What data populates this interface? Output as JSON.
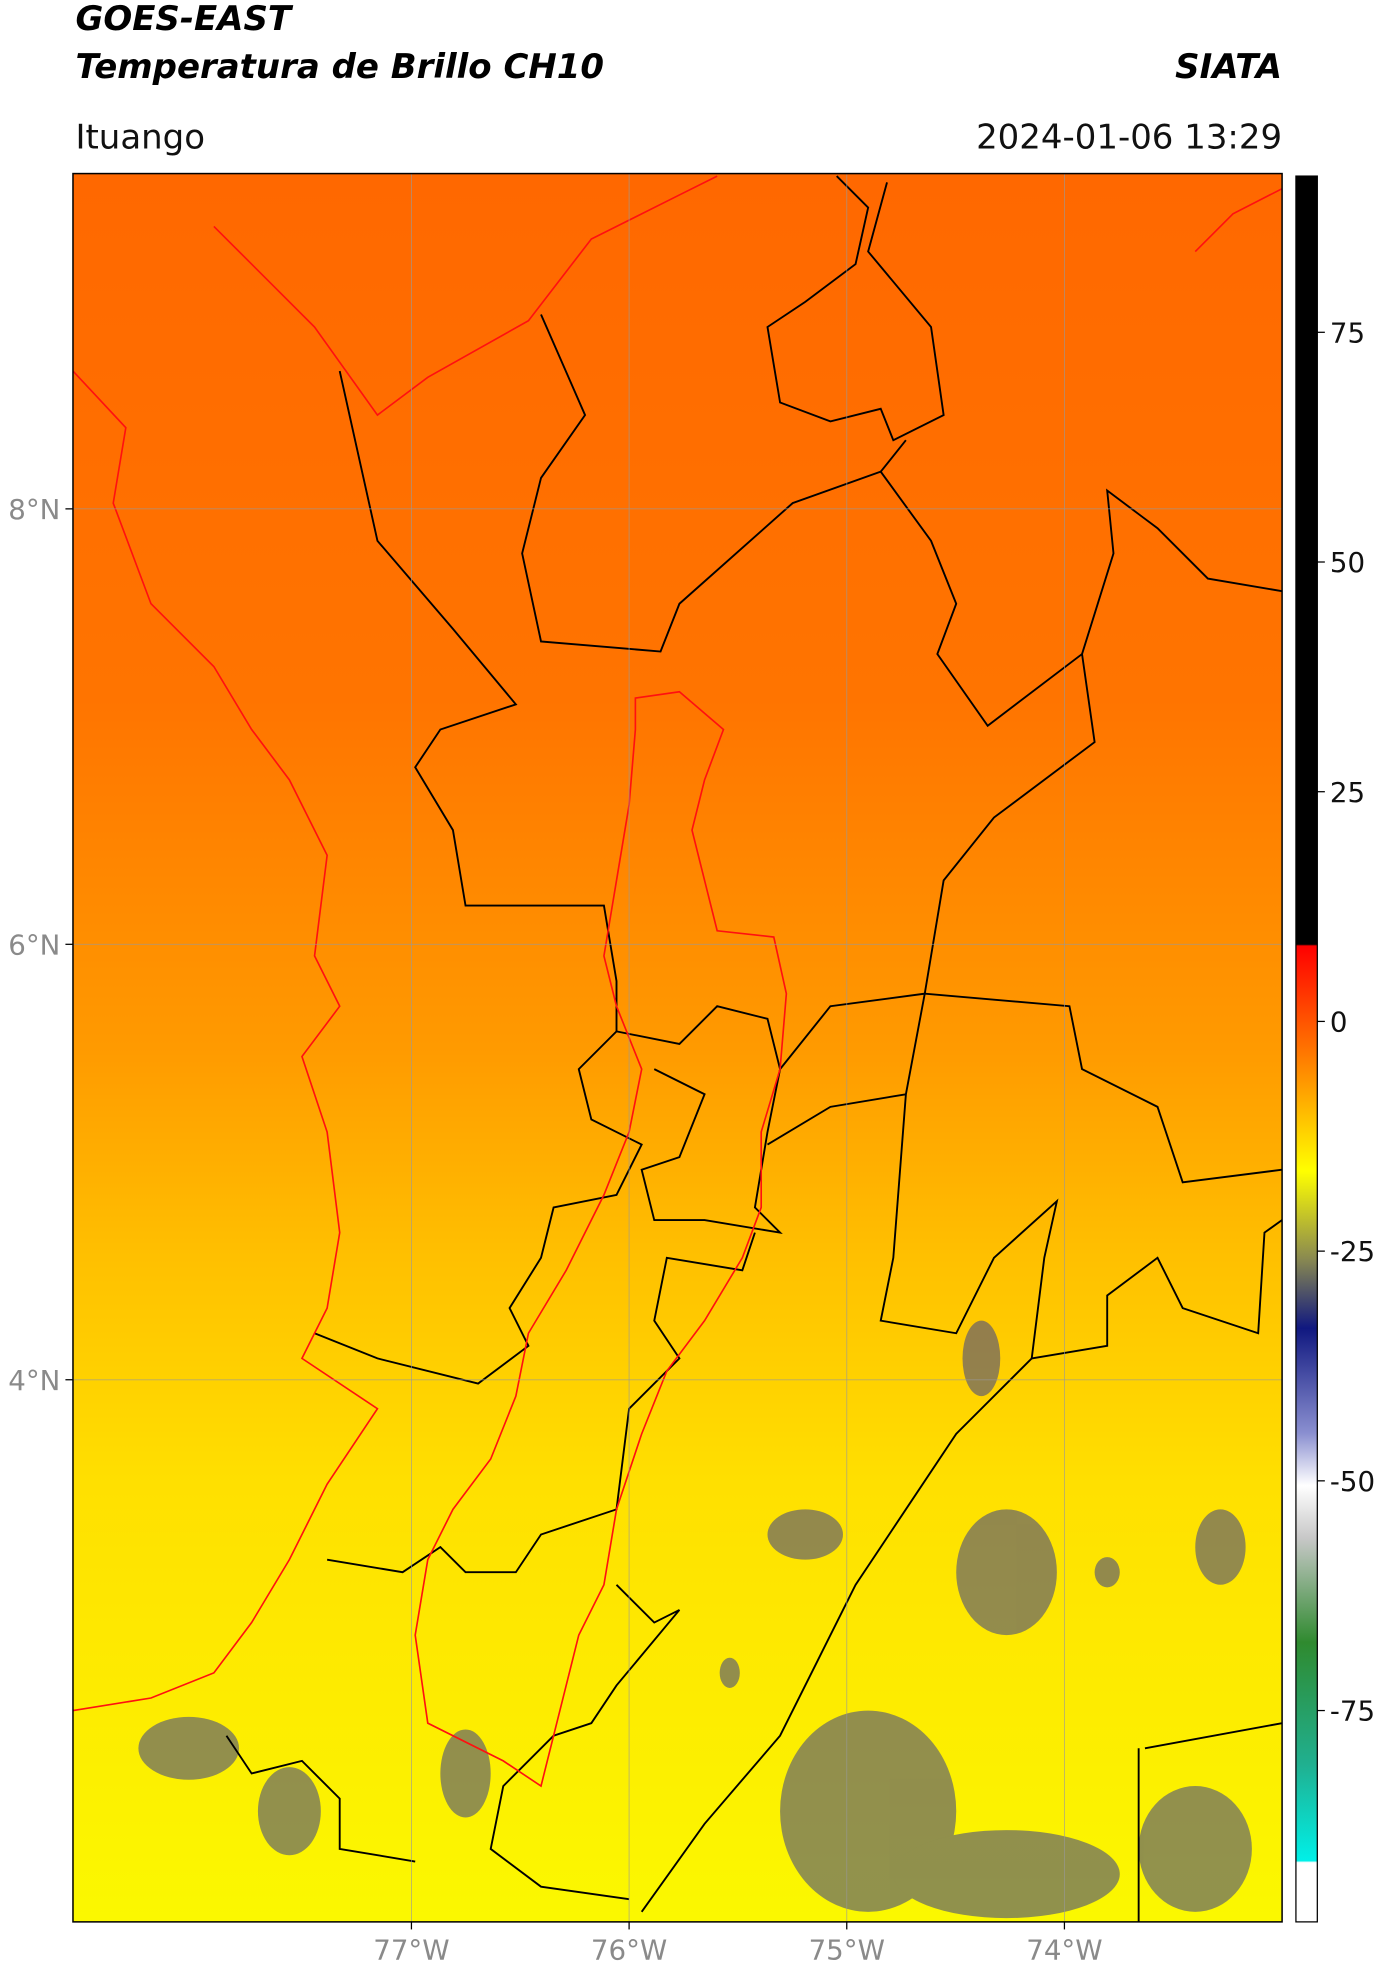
{
  "header": {
    "title": "GOES-EAST",
    "subtitle": "Temperatura de Brillo CH10",
    "source": "SIATA",
    "location": "Ituango",
    "datetime": "2024-01-06 13:29"
  },
  "map": {
    "lon_range": [
      -78.555,
      -73.0
    ],
    "lat_range": [
      1.51,
      9.54
    ],
    "lon_ticks": [
      {
        "value": -77,
        "label": "77°W"
      },
      {
        "value": -76,
        "label": "76°W"
      },
      {
        "value": -75,
        "label": "75°W"
      },
      {
        "value": -74,
        "label": "74°W"
      }
    ],
    "lat_ticks": [
      {
        "value": 8,
        "label": "8°N"
      },
      {
        "value": 6,
        "label": "6°N"
      },
      {
        "value": 4,
        "label": "4°N"
      }
    ],
    "grid": true
  },
  "colorbar": {
    "range": [
      -98,
      92
    ],
    "ticks": [
      75,
      50,
      25,
      0,
      -25,
      -50,
      -75
    ]
  }
}
